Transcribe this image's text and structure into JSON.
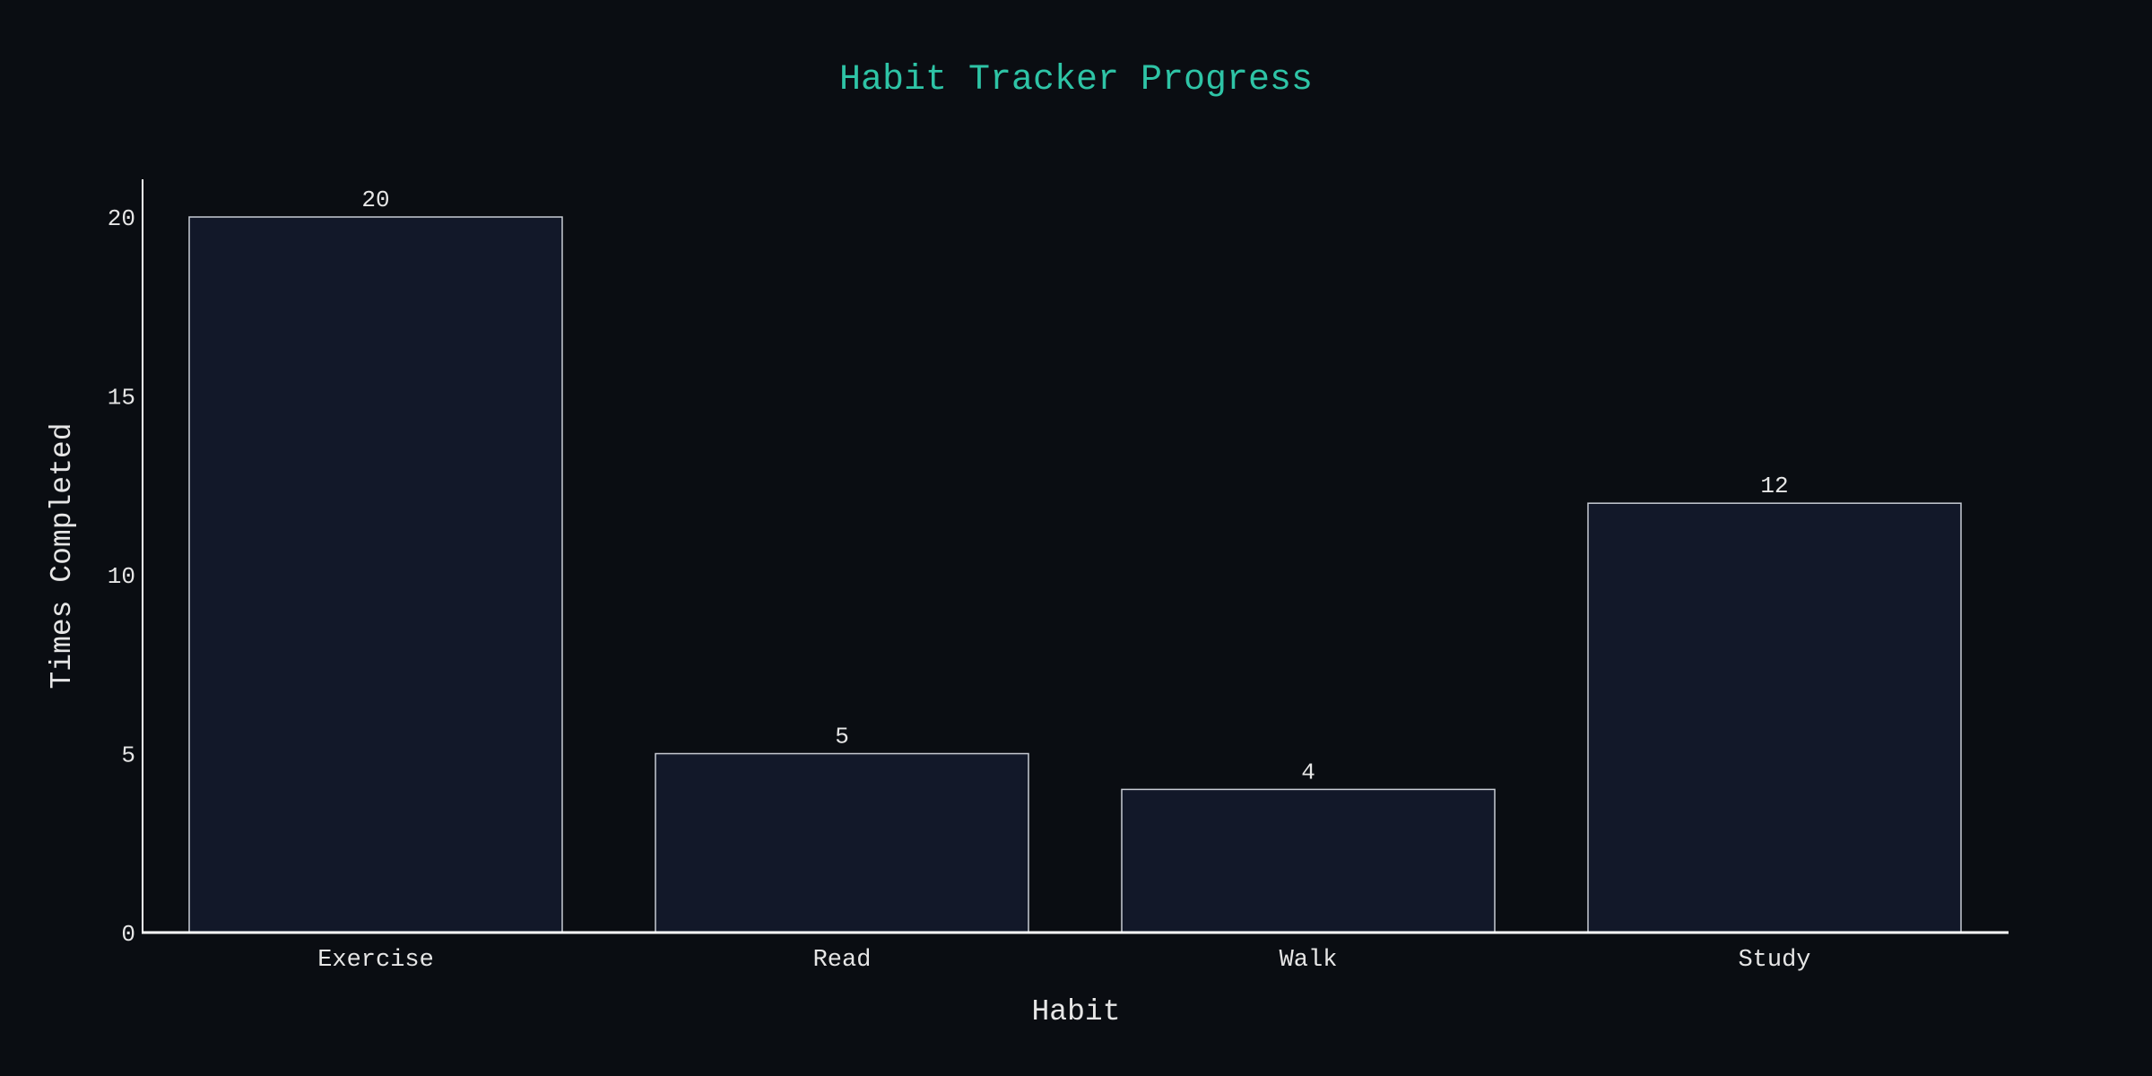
{
  "chart_data": {
    "type": "bar",
    "title": "Habit Tracker Progress",
    "xlabel": "Habit",
    "ylabel": "Times Completed",
    "categories": [
      "Exercise",
      "Read",
      "Walk",
      "Study"
    ],
    "values": [
      20,
      5,
      4,
      12
    ],
    "ylim": [
      0,
      21
    ],
    "yticks": [
      0,
      5,
      10,
      15,
      20
    ],
    "grid": false,
    "data_labels": true
  },
  "colors": {
    "background": "#0a0d12",
    "title": "#2ec4a6",
    "text": "#e6e6e6",
    "bar_fill": "#121829",
    "bar_stroke": "#c8ccd4",
    "axis": "#ffffff"
  }
}
